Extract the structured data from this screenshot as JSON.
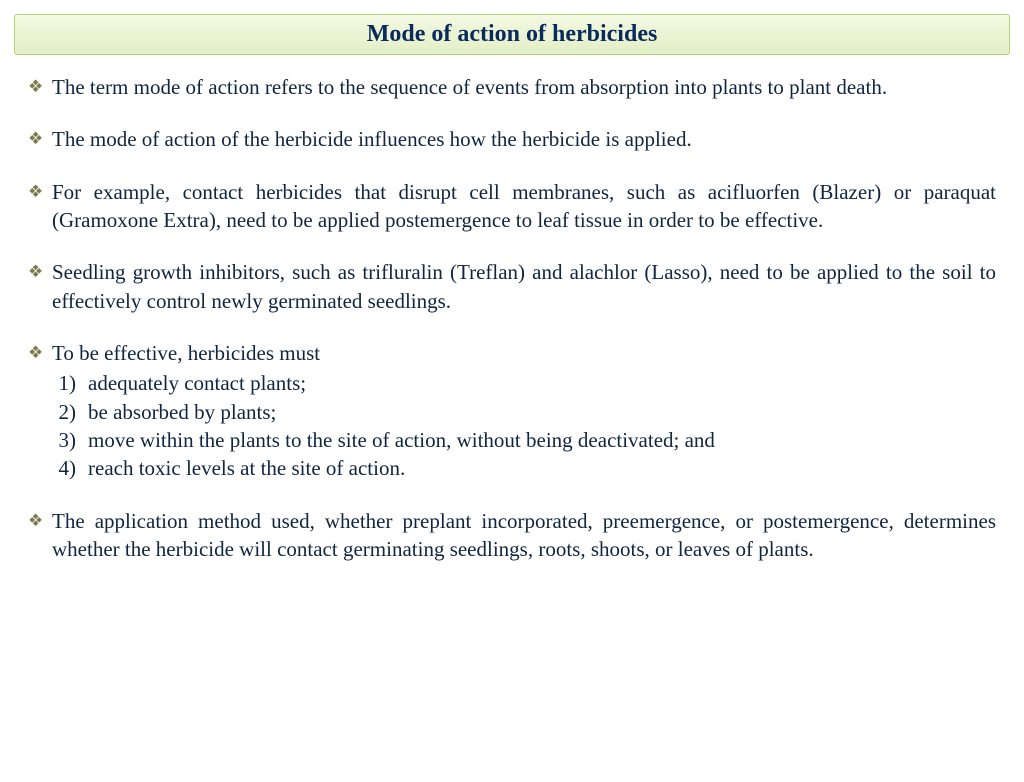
{
  "title": "Mode of action of herbicides",
  "bullets": [
    "The term mode of action refers to the sequence of events from absorption into plants to plant death.",
    "The mode of action of the herbicide influences how the herbicide is applied.",
    "For example, contact herbicides that disrupt cell membranes, such as acifluorfen (Blazer) or paraquat (Gramoxone Extra), need to be applied postemergence to leaf tissue in order to be effective.",
    "Seedling growth inhibitors, such as trifluralin (Treflan) and alachlor (Lasso), need to be applied to the soil to effectively control newly germinated seedlings."
  ],
  "effective_intro": "To be effective, herbicides must",
  "effective_list": [
    {
      "n": "1)",
      "t": "adequately contact plants;"
    },
    {
      "n": "2)",
      "t": "be absorbed by plants;"
    },
    {
      "n": "3)",
      "t": "move within the plants to the site of action, without being deactivated; and"
    },
    {
      "n": "4)",
      "t": "reach toxic levels at the site of action."
    }
  ],
  "final_bullet": "The application method used, whether preplant incorporated, preemergence, or postemergence, determines whether the herbicide will contact germinating seedlings, roots, shoots, or leaves of plants.",
  "colors": {
    "title_text": "#0a2a5c",
    "body_text": "#102540",
    "bullet_icon": "#7a7a4a",
    "title_bg_top": "#f3f9e3",
    "title_bg_bottom": "#e3efc6",
    "title_border": "#b8d084",
    "background": "#ffffff"
  },
  "fonts": {
    "title_size_pt": 18,
    "body_size_pt": 16,
    "family": "Times New Roman"
  }
}
